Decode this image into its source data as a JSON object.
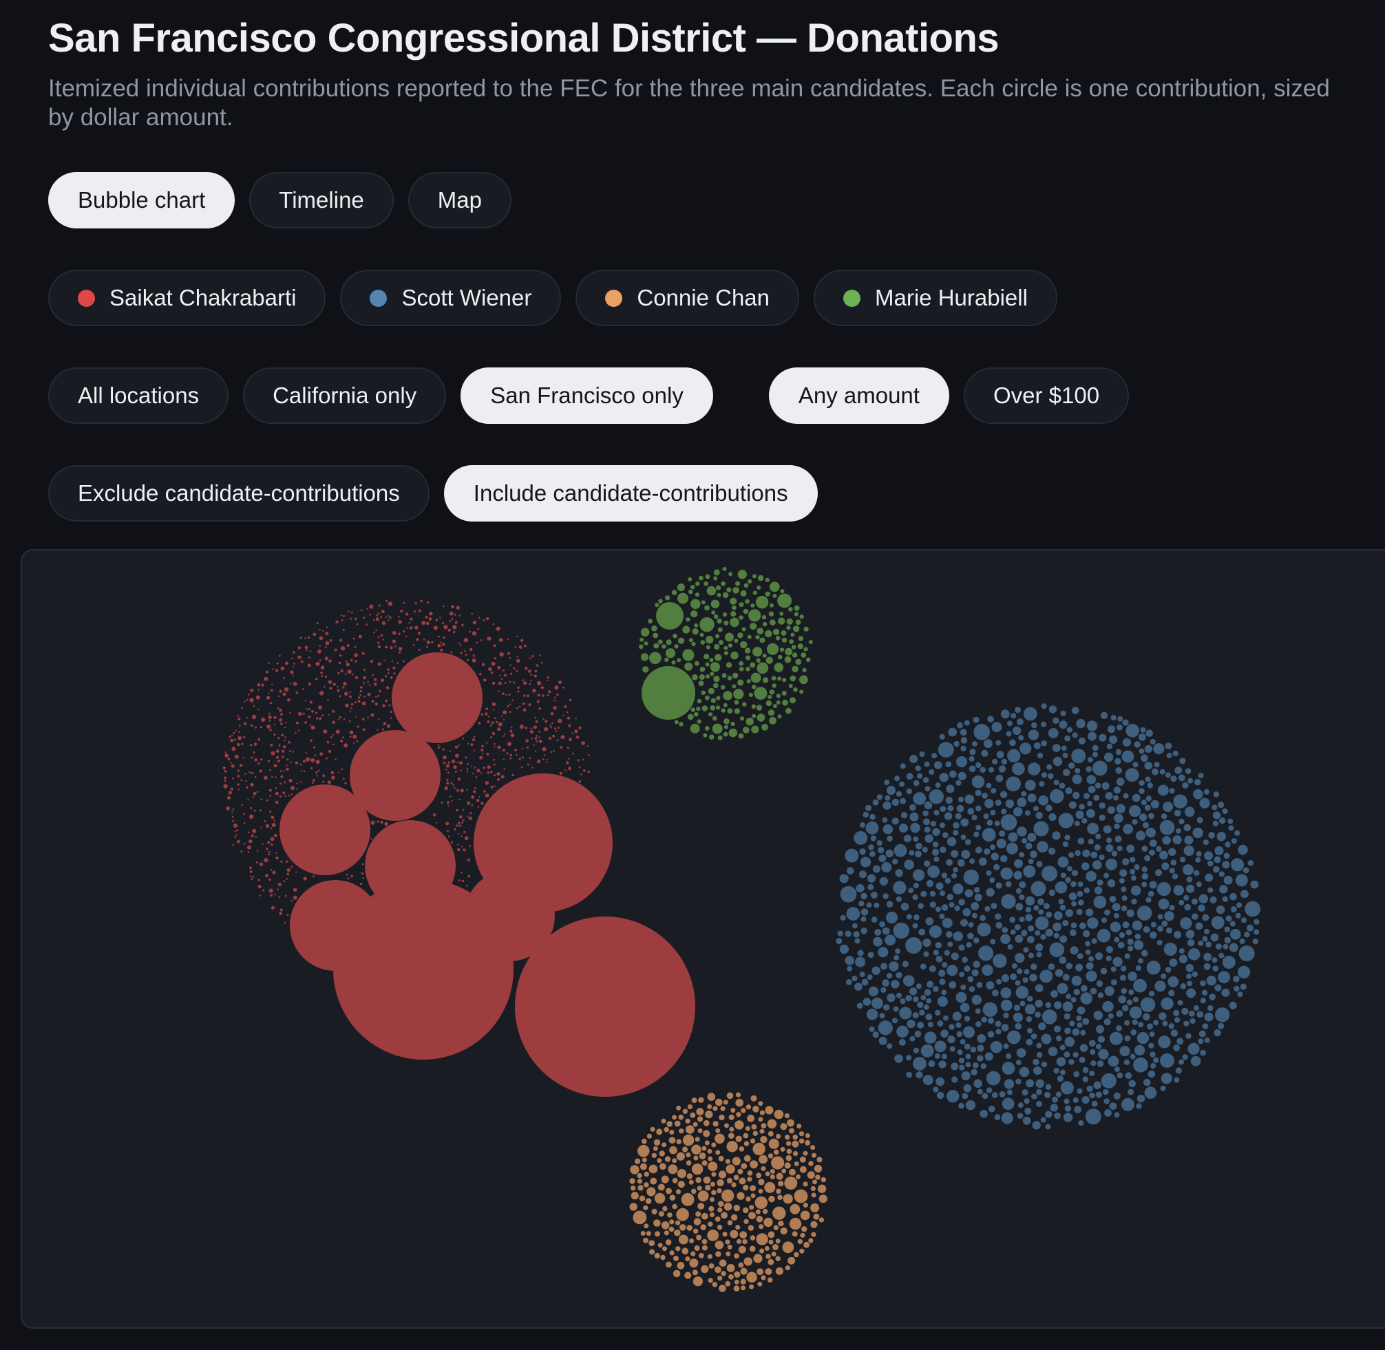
{
  "header": {
    "title": "San Francisco Congressional District — Donations",
    "subtitle": "Itemized individual contributions reported to the FEC for the three main candidates. Each circle is one contribution, sized by dollar amount."
  },
  "view_tabs": [
    {
      "label": "Bubble chart",
      "active": true
    },
    {
      "label": "Timeline",
      "active": false
    },
    {
      "label": "Map",
      "active": false
    }
  ],
  "candidates": [
    {
      "label": "Saikat Chakrabarti",
      "color": "#e04848"
    },
    {
      "label": "Scott Wiener",
      "color": "#5585b3"
    },
    {
      "label": "Connie Chan",
      "color": "#eda065"
    },
    {
      "label": "Marie Hurabiell",
      "color": "#6fb256"
    }
  ],
  "location_filters": [
    {
      "label": "All locations",
      "active": false
    },
    {
      "label": "California only",
      "active": false
    },
    {
      "label": "San Francisco only",
      "active": true
    }
  ],
  "amount_filters": [
    {
      "label": "Any amount",
      "active": true
    },
    {
      "label": "Over $100",
      "active": false
    }
  ],
  "self_contribution_filters": [
    {
      "label": "Exclude candidate-contributions",
      "active": false
    },
    {
      "label": "Include candidate-contributions",
      "active": true
    }
  ],
  "chart_data": {
    "type": "bubble",
    "encoding": "each circle is one contribution, area proportional to dollar amount",
    "groups": [
      {
        "candidate": "Saikat Chakrabarti",
        "color": "#9e3d3f",
        "large_contribution_count": 11,
        "small_contribution_count": "many hundreds (tiny)"
      },
      {
        "candidate": "Scott Wiener",
        "color": "#3e5f7d",
        "contribution_count": "approx. 2500"
      },
      {
        "candidate": "Connie Chan",
        "color": "#b07d55",
        "contribution_count": "approx. 700"
      },
      {
        "candidate": "Marie Hurabiell",
        "color": "#527f3f",
        "contribution_count": "approx. 250",
        "large_contribution_count": 2
      }
    ]
  }
}
